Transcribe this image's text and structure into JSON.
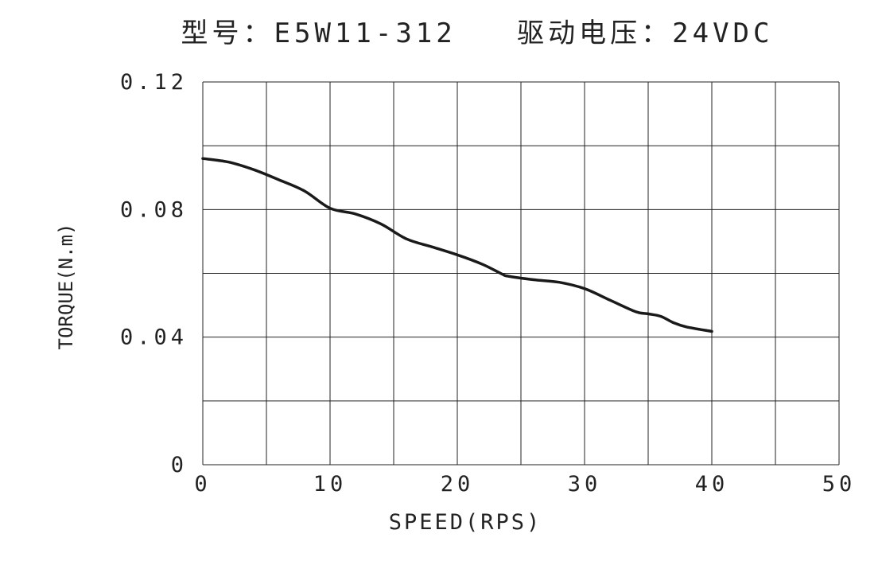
{
  "chart_data": {
    "type": "line",
    "title": "型号：E5W11-312   驱动电压：24VDC",
    "xlabel": "SPEED(RPS)",
    "ylabel": "TORQUE(N.m)",
    "xlim": [
      0,
      50
    ],
    "ylim": [
      0,
      0.12
    ],
    "x_ticks": [
      "0",
      "10",
      "20",
      "30",
      "40",
      "50"
    ],
    "y_ticks": [
      "0",
      "0.04",
      "0.08",
      "0.12"
    ],
    "grid": true,
    "series": [
      {
        "x": [
          0,
          2,
          4,
          6,
          8,
          10,
          12,
          14,
          16,
          18,
          20,
          22,
          23.5,
          24,
          26,
          28,
          30,
          32,
          34,
          35,
          36,
          37,
          38,
          40
        ],
        "y": [
          0.096,
          0.0949,
          0.0925,
          0.0893,
          0.0858,
          0.0804,
          0.0786,
          0.0755,
          0.0708,
          0.0683,
          0.0658,
          0.0628,
          0.0598,
          0.0591,
          0.058,
          0.0572,
          0.0552,
          0.0516,
          0.048,
          0.0473,
          0.0465,
          0.0445,
          0.0432,
          0.0418
        ],
        "color": "#1a1a1a"
      }
    ]
  }
}
